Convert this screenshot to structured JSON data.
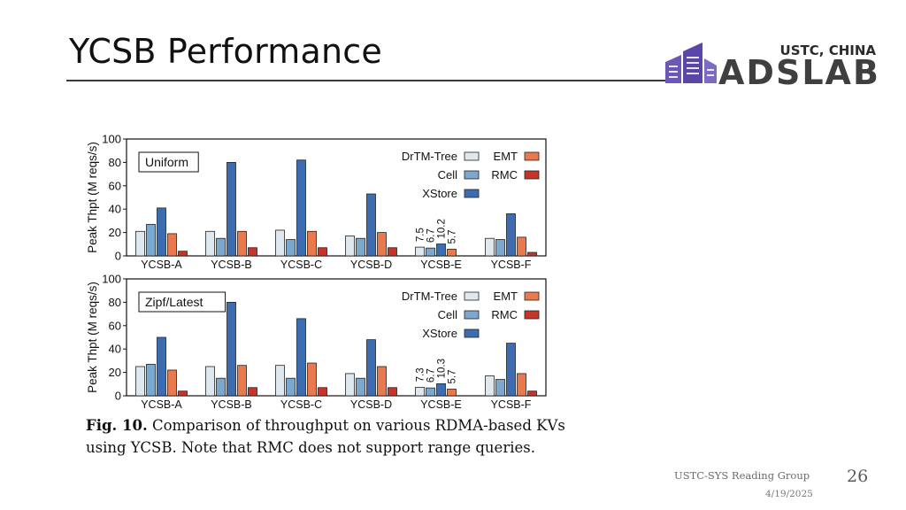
{
  "slide": {
    "title": "YCSB Performance",
    "logo": {
      "top": "USTC, CHINA",
      "main": "ADSLAB"
    },
    "footer": "USTC-SYS Reading Group",
    "page_number": "26",
    "date": "4/19/2025"
  },
  "caption": {
    "label": "Fig. 10.",
    "text": " Comparison of throughput on various RDMA-based KVs using YCSB. Note that RMC does not support range queries."
  },
  "colors": {
    "DrTM-Tree": "#dfe8ef",
    "Cell": "#7ba8cc",
    "XStore": "#3d6db0",
    "EMT": "#ea7a4d",
    "RMC": "#c6342a"
  },
  "chart_data": [
    {
      "type": "bar",
      "inset_label": "Uniform",
      "ylabel": "Peak Thpt (M reqs/s)",
      "ylim": [
        0,
        100
      ],
      "yticks": [
        0,
        20,
        40,
        60,
        80,
        100
      ],
      "legend": "top-right",
      "categories": [
        "YCSB-A",
        "YCSB-B",
        "YCSB-C",
        "YCSB-D",
        "YCSB-E",
        "YCSB-F"
      ],
      "series": [
        {
          "name": "DrTM-Tree",
          "values": [
            21,
            21,
            22,
            17,
            7.5,
            15
          ]
        },
        {
          "name": "Cell",
          "values": [
            27,
            15,
            14,
            15,
            6.7,
            14
          ]
        },
        {
          "name": "XStore",
          "values": [
            41,
            80,
            82,
            53,
            10.2,
            36
          ]
        },
        {
          "name": "EMT",
          "values": [
            19,
            21,
            21,
            20,
            5.7,
            16
          ]
        },
        {
          "name": "RMC",
          "values": [
            4,
            7,
            7,
            7,
            null,
            3
          ]
        }
      ],
      "annotations": {
        "category": "YCSB-E",
        "labels": [
          "7.5",
          "6.7",
          "10.2",
          "5.7"
        ]
      }
    },
    {
      "type": "bar",
      "inset_label": "Zipf/Latest",
      "ylabel": "Peak Thpt (M reqs/s)",
      "ylim": [
        0,
        100
      ],
      "yticks": [
        0,
        20,
        40,
        60,
        80,
        100
      ],
      "legend": "top-right",
      "categories": [
        "YCSB-A",
        "YCSB-B",
        "YCSB-C",
        "YCSB-D",
        "YCSB-E",
        "YCSB-F"
      ],
      "series": [
        {
          "name": "DrTM-Tree",
          "values": [
            25,
            25,
            26,
            19,
            7.3,
            17
          ]
        },
        {
          "name": "Cell",
          "values": [
            27,
            15,
            15,
            15,
            6.7,
            14
          ]
        },
        {
          "name": "XStore",
          "values": [
            50,
            80,
            66,
            48,
            10.3,
            45
          ]
        },
        {
          "name": "EMT",
          "values": [
            22,
            26,
            28,
            25,
            5.7,
            19
          ]
        },
        {
          "name": "RMC",
          "values": [
            4,
            7,
            7,
            7,
            null,
            4
          ]
        }
      ],
      "annotations": {
        "category": "YCSB-E",
        "labels": [
          "7.3",
          "6.7",
          "10.3",
          "5.7"
        ]
      }
    }
  ]
}
